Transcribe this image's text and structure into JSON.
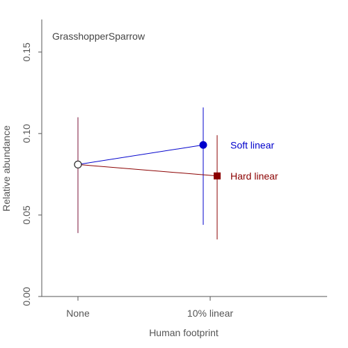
{
  "chart_data": {
    "type": "line",
    "title": "GrasshopperSparrow",
    "xlabel": "Human footprint",
    "ylabel": "Relative abundance",
    "categories": [
      "None",
      "10% linear"
    ],
    "ylim": [
      0,
      0.17
    ],
    "yticks": [
      0.0,
      0.05,
      0.1,
      0.15
    ],
    "ytick_labels": [
      "0.00",
      "0.05",
      "0.10",
      "0.15"
    ],
    "grid": false,
    "baseline": {
      "category": "None",
      "value": 0.081,
      "lower": 0.039,
      "upper": 0.11,
      "color": "#555555"
    },
    "series": [
      {
        "name": "Soft linear",
        "color": "#0000cc",
        "marker": "circle",
        "values": [
          0.081,
          0.093
        ],
        "lower": [
          0.039,
          0.044
        ],
        "upper": [
          0.11,
          0.116
        ]
      },
      {
        "name": "Hard linear",
        "color": "#8b0000",
        "marker": "square",
        "values": [
          0.081,
          0.074
        ],
        "lower": [
          0.039,
          0.035
        ],
        "upper": [
          0.11,
          0.099
        ]
      }
    ]
  }
}
